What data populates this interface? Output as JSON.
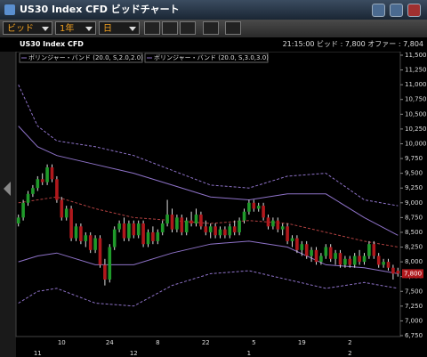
{
  "window": {
    "title": "US30 Index CFD ビッドチャート"
  },
  "toolbar": {
    "price_type": "ビッド",
    "period": "1年",
    "interval": "日"
  },
  "info": {
    "symbol": "US30 Index CFD",
    "time": "21:15:00",
    "bid_label": "ビッド :",
    "bid": "7,800",
    "offer_label": "オファー :",
    "offer": "7,804"
  },
  "chart_data": {
    "type": "candlestick",
    "categories": [
      null,
      null,
      null,
      null,
      null,
      null,
      null,
      null,
      null,
      "10",
      null,
      null,
      null,
      null,
      null,
      null,
      null,
      null,
      null,
      "24",
      null,
      null,
      null,
      null,
      null,
      null,
      null,
      null,
      null,
      "8",
      null,
      null,
      null,
      null,
      null,
      null,
      null,
      null,
      null,
      "22",
      null,
      null,
      null,
      null,
      null,
      null,
      null,
      null,
      null,
      "5",
      null,
      null,
      null,
      null,
      null,
      null,
      null,
      null,
      null,
      "19",
      null,
      null,
      null,
      null,
      null,
      null,
      null,
      null,
      null,
      "2",
      null,
      null,
      null,
      null,
      null,
      null,
      null,
      null,
      null,
      null
    ],
    "months": [
      null,
      null,
      null,
      null,
      "11",
      null,
      null,
      null,
      null,
      null,
      null,
      null,
      null,
      null,
      null,
      null,
      null,
      null,
      null,
      null,
      null,
      null,
      null,
      null,
      "12",
      null,
      null,
      null,
      null,
      null,
      null,
      null,
      null,
      null,
      null,
      null,
      null,
      null,
      null,
      null,
      null,
      null,
      null,
      null,
      null,
      null,
      null,
      null,
      "1",
      null,
      null,
      null,
      null,
      null,
      null,
      null,
      null,
      null,
      null,
      null,
      null,
      null,
      null,
      null,
      null,
      null,
      null,
      null,
      null,
      "2",
      null,
      null,
      null,
      null,
      null,
      null,
      null,
      null,
      null,
      null
    ],
    "open": [
      8650,
      8750,
      9000,
      9150,
      9250,
      9400,
      9350,
      9600,
      9400,
      9050,
      8750,
      8900,
      8400,
      8600,
      8350,
      8450,
      8200,
      8400,
      7950,
      7700,
      8250,
      8550,
      8650,
      8400,
      8650,
      8450,
      8650,
      8300,
      8500,
      8350,
      8500,
      8650,
      8800,
      8550,
      8750,
      8500,
      8700,
      8650,
      8800,
      8600,
      8500,
      8600,
      8450,
      8550,
      8450,
      8600,
      8500,
      8700,
      8850,
      9000,
      8900,
      8950,
      8750,
      8600,
      8700,
      8550,
      8600,
      8350,
      8400,
      8200,
      8300,
      8100,
      8200,
      8000,
      8100,
      8250,
      8050,
      8150,
      7950,
      8050,
      7950,
      8100,
      8000,
      8100,
      8300,
      8100,
      7950,
      8000,
      7900,
      7850
    ],
    "high": [
      8800,
      9050,
      9200,
      9300,
      9450,
      9500,
      9650,
      9650,
      9450,
      9100,
      8950,
      8950,
      8650,
      8650,
      8500,
      8500,
      8450,
      8450,
      8050,
      8300,
      8600,
      8700,
      8750,
      8700,
      8700,
      8700,
      8700,
      8550,
      8600,
      8550,
      8700,
      9050,
      8900,
      8800,
      8800,
      8750,
      8850,
      8900,
      8850,
      8700,
      8650,
      8650,
      8600,
      8600,
      8650,
      8700,
      8750,
      8900,
      9050,
      9050,
      9000,
      9000,
      8800,
      8750,
      8750,
      8650,
      8650,
      8450,
      8450,
      8350,
      8350,
      8250,
      8250,
      8150,
      8300,
      8300,
      8200,
      8200,
      8100,
      8100,
      8150,
      8200,
      8150,
      8350,
      8350,
      8150,
      8050,
      8050,
      7950,
      7900
    ],
    "low": [
      8600,
      8700,
      8950,
      9100,
      9200,
      9300,
      9300,
      9350,
      9000,
      8700,
      8700,
      8350,
      8350,
      8300,
      8250,
      8150,
      8150,
      7900,
      7600,
      7650,
      8200,
      8500,
      8350,
      8350,
      8400,
      8400,
      8250,
      8250,
      8300,
      8300,
      8450,
      8600,
      8500,
      8500,
      8450,
      8450,
      8600,
      8600,
      8550,
      8450,
      8400,
      8400,
      8400,
      8400,
      8400,
      8450,
      8450,
      8650,
      8800,
      8850,
      8850,
      8700,
      8550,
      8550,
      8500,
      8450,
      8300,
      8250,
      8150,
      8100,
      8050,
      8000,
      7950,
      7950,
      8050,
      8000,
      7950,
      7900,
      7900,
      7900,
      7900,
      7950,
      7950,
      8050,
      8050,
      7900,
      7900,
      7850,
      7700,
      7750
    ],
    "close": [
      8750,
      9000,
      9150,
      9250,
      9400,
      9350,
      9600,
      9400,
      9050,
      8750,
      8900,
      8400,
      8600,
      8350,
      8450,
      8200,
      8400,
      7950,
      7700,
      8250,
      8550,
      8650,
      8400,
      8650,
      8450,
      8650,
      8300,
      8500,
      8350,
      8500,
      8650,
      8800,
      8550,
      8750,
      8500,
      8700,
      8650,
      8800,
      8600,
      8500,
      8600,
      8450,
      8550,
      8450,
      8600,
      8500,
      8700,
      8850,
      9000,
      8900,
      8950,
      8750,
      8600,
      8700,
      8550,
      8600,
      8350,
      8400,
      8200,
      8300,
      8100,
      8200,
      8000,
      8100,
      8250,
      8050,
      8150,
      7950,
      8050,
      7950,
      8100,
      8000,
      8100,
      8300,
      8100,
      7950,
      8000,
      7900,
      7800,
      7800
    ],
    "up_color": "#1f9a2a",
    "down_color": "#b0181c",
    "indicators": [
      {
        "name": "ボリンジャー・バンド (20.0, S,2.0,2.0)",
        "color": "#8e72c8",
        "dash": false,
        "x": [
          0,
          4,
          8,
          16,
          24,
          32,
          40,
          48,
          56,
          64,
          72,
          79
        ],
        "upper": [
          10300,
          9950,
          9800,
          9650,
          9500,
          9300,
          9100,
          9050,
          9150,
          9150,
          8750,
          8450
        ],
        "lower": [
          8000,
          8100,
          8150,
          7950,
          7950,
          8150,
          8300,
          8350,
          8250,
          7950,
          7900,
          7800
        ]
      },
      {
        "name": "ボリンジャー・バンド (20.0, S,3.0,3.0)",
        "color": "#8e72c8",
        "dash": true,
        "x": [
          0,
          4,
          8,
          16,
          24,
          32,
          40,
          48,
          56,
          64,
          72,
          79
        ],
        "upper": [
          11000,
          10300,
          10050,
          9950,
          9800,
          9550,
          9300,
          9250,
          9450,
          9500,
          9050,
          8950
        ],
        "lower": [
          7300,
          7500,
          7550,
          7300,
          7250,
          7600,
          7800,
          7850,
          7700,
          7550,
          7650,
          7550
        ]
      }
    ],
    "middle": {
      "color": "#b04040",
      "x": [
        0,
        4,
        8,
        16,
        24,
        32,
        40,
        48,
        56,
        64,
        72,
        79
      ],
      "values": [
        9000,
        9050,
        9100,
        8900,
        8750,
        8700,
        8650,
        8700,
        8650,
        8500,
        8350,
        8250
      ]
    },
    "last_price": {
      "value": 7800,
      "label": "7,800"
    },
    "ylim": [
      6750,
      11500
    ],
    "yticks": [
      {
        "value": 6750,
        "label": "6,750"
      },
      {
        "value": 7000,
        "label": "7,000"
      },
      {
        "value": 7250,
        "label": "7,250"
      },
      {
        "value": 7500,
        "label": "7,500"
      },
      {
        "value": 7750,
        "label": "7,750"
      },
      {
        "value": 8000,
        "label": "8,000"
      },
      {
        "value": 8250,
        "label": "8,250"
      },
      {
        "value": 8500,
        "label": "8,500"
      },
      {
        "value": 8750,
        "label": "8,750"
      },
      {
        "value": 9000,
        "label": "9,000"
      },
      {
        "value": 9250,
        "label": "9,250"
      },
      {
        "value": 9500,
        "label": "9,500"
      },
      {
        "value": 9750,
        "label": "9,750"
      },
      {
        "value": 10000,
        "label": "10,000"
      },
      {
        "value": 10250,
        "label": "10,250"
      },
      {
        "value": 10500,
        "label": "10,500"
      },
      {
        "value": 10750,
        "label": "10,750"
      },
      {
        "value": 11000,
        "label": "11,000"
      },
      {
        "value": 11250,
        "label": "11,250"
      },
      {
        "value": 11500,
        "label": "11,500"
      }
    ]
  }
}
